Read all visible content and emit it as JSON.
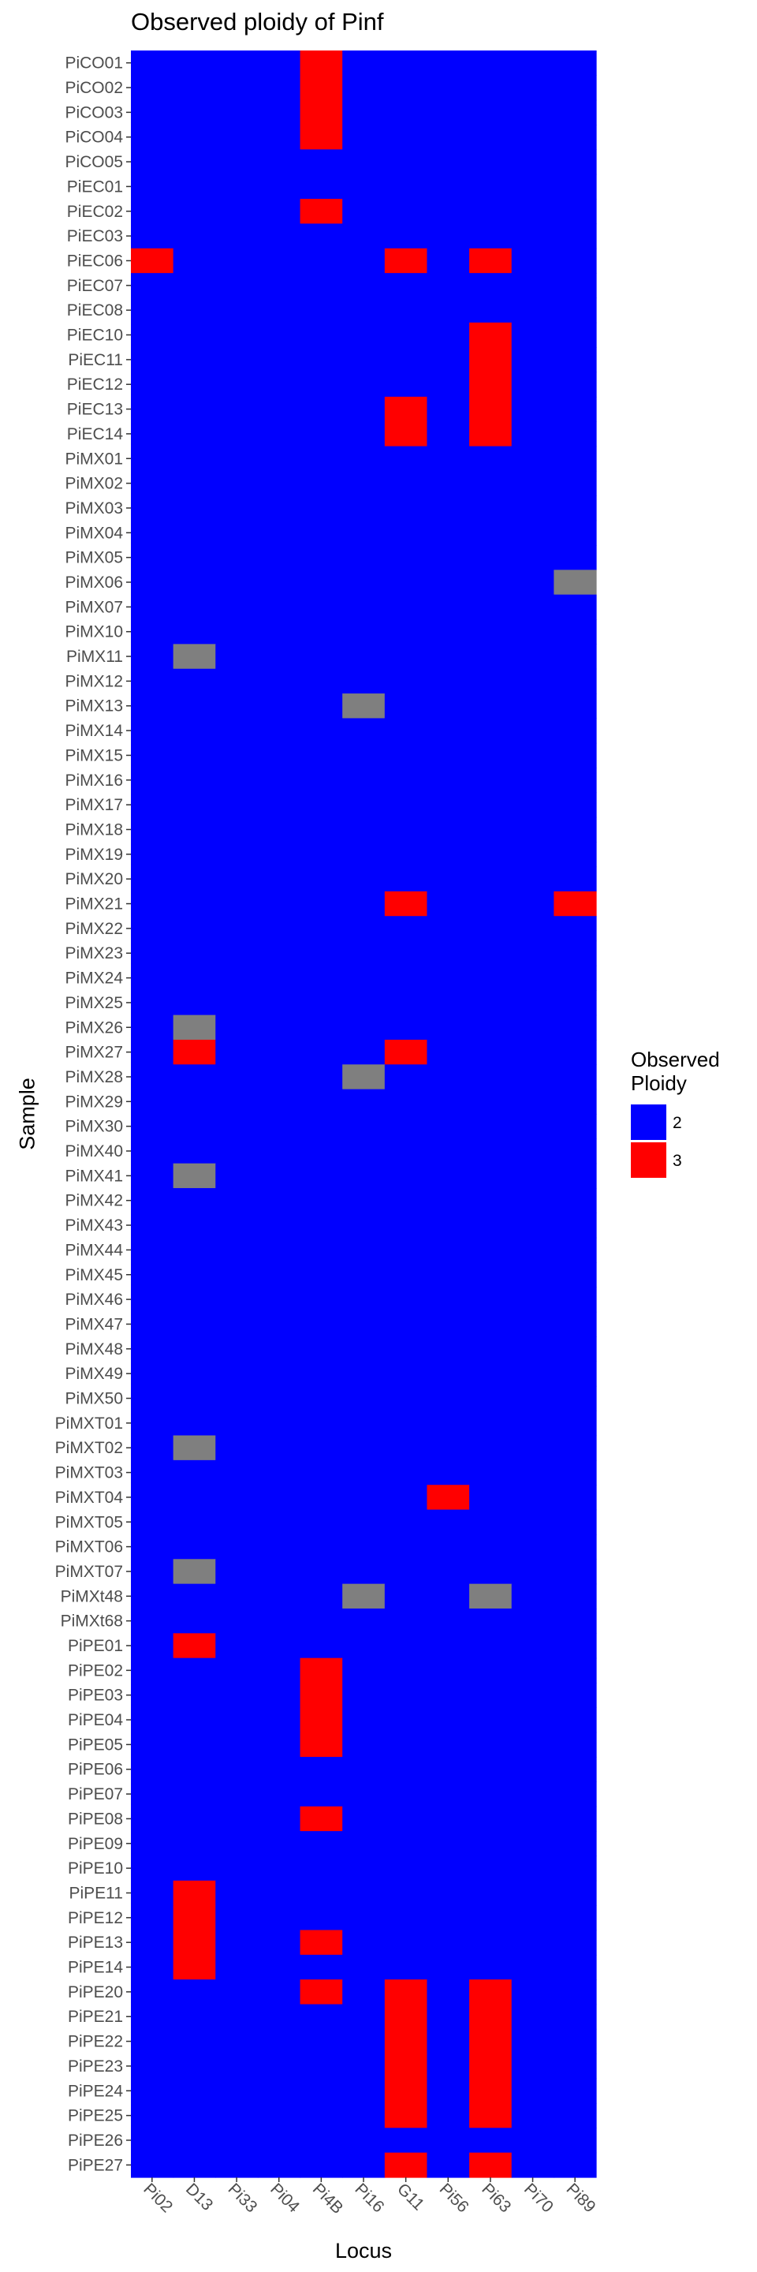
{
  "chart_data": {
    "type": "heatmap",
    "title": "Observed ploidy of Pinf",
    "xlabel": "Locus",
    "ylabel": "Sample",
    "x": [
      "Pi02",
      "D13",
      "Pi33",
      "Pi04",
      "Pi4B",
      "Pi16",
      "G11",
      "Pi56",
      "Pi63",
      "Pi70",
      "Pi89"
    ],
    "y": [
      "PiCO01",
      "PiCO02",
      "PiCO03",
      "PiCO04",
      "PiCO05",
      "PiEC01",
      "PiEC02",
      "PiEC03",
      "PiEC06",
      "PiEC07",
      "PiEC08",
      "PiEC10",
      "PiEC11",
      "PiEC12",
      "PiEC13",
      "PiEC14",
      "PiMX01",
      "PiMX02",
      "PiMX03",
      "PiMX04",
      "PiMX05",
      "PiMX06",
      "PiMX07",
      "PiMX10",
      "PiMX11",
      "PiMX12",
      "PiMX13",
      "PiMX14",
      "PiMX15",
      "PiMX16",
      "PiMX17",
      "PiMX18",
      "PiMX19",
      "PiMX20",
      "PiMX21",
      "PiMX22",
      "PiMX23",
      "PiMX24",
      "PiMX25",
      "PiMX26",
      "PiMX27",
      "PiMX28",
      "PiMX29",
      "PiMX30",
      "PiMX40",
      "PiMX41",
      "PiMX42",
      "PiMX43",
      "PiMX44",
      "PiMX45",
      "PiMX46",
      "PiMX47",
      "PiMX48",
      "PiMX49",
      "PiMX50",
      "PiMXT01",
      "PiMXT02",
      "PiMXT03",
      "PiMXT04",
      "PiMXT05",
      "PiMXT06",
      "PiMXT07",
      "PiMXt48",
      "PiMXt68",
      "PiPE01",
      "PiPE02",
      "PiPE03",
      "PiPE04",
      "PiPE05",
      "PiPE06",
      "PiPE07",
      "PiPE08",
      "PiPE09",
      "PiPE10",
      "PiPE11",
      "PiPE12",
      "PiPE13",
      "PiPE14",
      "PiPE20",
      "PiPE21",
      "PiPE22",
      "PiPE23",
      "PiPE24",
      "PiPE25",
      "PiPE26",
      "PiPE27"
    ],
    "default_value": "2",
    "cells": [
      {
        "y": "PiCO01",
        "x": "Pi4B",
        "value": "3"
      },
      {
        "y": "PiCO02",
        "x": "Pi4B",
        "value": "3"
      },
      {
        "y": "PiCO03",
        "x": "Pi4B",
        "value": "3"
      },
      {
        "y": "PiCO04",
        "x": "Pi4B",
        "value": "3"
      },
      {
        "y": "PiEC02",
        "x": "Pi4B",
        "value": "3"
      },
      {
        "y": "PiEC06",
        "x": "Pi02",
        "value": "3"
      },
      {
        "y": "PiEC06",
        "x": "G11",
        "value": "3"
      },
      {
        "y": "PiEC06",
        "x": "Pi63",
        "value": "3"
      },
      {
        "y": "PiEC10",
        "x": "Pi63",
        "value": "3"
      },
      {
        "y": "PiEC11",
        "x": "Pi63",
        "value": "3"
      },
      {
        "y": "PiEC12",
        "x": "Pi63",
        "value": "3"
      },
      {
        "y": "PiEC13",
        "x": "G11",
        "value": "3"
      },
      {
        "y": "PiEC13",
        "x": "Pi63",
        "value": "3"
      },
      {
        "y": "PiEC14",
        "x": "G11",
        "value": "3"
      },
      {
        "y": "PiEC14",
        "x": "Pi63",
        "value": "3"
      },
      {
        "y": "PiMX06",
        "x": "Pi89",
        "value": "NA"
      },
      {
        "y": "PiMX11",
        "x": "D13",
        "value": "NA"
      },
      {
        "y": "PiMX13",
        "x": "Pi16",
        "value": "NA"
      },
      {
        "y": "PiMX21",
        "x": "G11",
        "value": "3"
      },
      {
        "y": "PiMX21",
        "x": "Pi89",
        "value": "3"
      },
      {
        "y": "PiMX26",
        "x": "D13",
        "value": "NA"
      },
      {
        "y": "PiMX27",
        "x": "D13",
        "value": "3"
      },
      {
        "y": "PiMX27",
        "x": "G11",
        "value": "3"
      },
      {
        "y": "PiMX28",
        "x": "Pi16",
        "value": "NA"
      },
      {
        "y": "PiMX41",
        "x": "D13",
        "value": "NA"
      },
      {
        "y": "PiMXT02",
        "x": "D13",
        "value": "NA"
      },
      {
        "y": "PiMXT04",
        "x": "Pi56",
        "value": "3"
      },
      {
        "y": "PiMXT07",
        "x": "D13",
        "value": "NA"
      },
      {
        "y": "PiMXt48",
        "x": "Pi16",
        "value": "NA"
      },
      {
        "y": "PiMXt48",
        "x": "Pi63",
        "value": "NA"
      },
      {
        "y": "PiPE01",
        "x": "D13",
        "value": "3"
      },
      {
        "y": "PiPE02",
        "x": "Pi4B",
        "value": "3"
      },
      {
        "y": "PiPE03",
        "x": "Pi4B",
        "value": "3"
      },
      {
        "y": "PiPE04",
        "x": "Pi4B",
        "value": "3"
      },
      {
        "y": "PiPE05",
        "x": "Pi4B",
        "value": "3"
      },
      {
        "y": "PiPE08",
        "x": "Pi4B",
        "value": "3"
      },
      {
        "y": "PiPE11",
        "x": "D13",
        "value": "3"
      },
      {
        "y": "PiPE12",
        "x": "D13",
        "value": "3"
      },
      {
        "y": "PiPE13",
        "x": "D13",
        "value": "3"
      },
      {
        "y": "PiPE13",
        "x": "Pi4B",
        "value": "3"
      },
      {
        "y": "PiPE14",
        "x": "D13",
        "value": "3"
      },
      {
        "y": "PiPE20",
        "x": "Pi4B",
        "value": "3"
      },
      {
        "y": "PiPE20",
        "x": "G11",
        "value": "3"
      },
      {
        "y": "PiPE20",
        "x": "Pi63",
        "value": "3"
      },
      {
        "y": "PiPE21",
        "x": "G11",
        "value": "3"
      },
      {
        "y": "PiPE21",
        "x": "Pi63",
        "value": "3"
      },
      {
        "y": "PiPE22",
        "x": "G11",
        "value": "3"
      },
      {
        "y": "PiPE22",
        "x": "Pi63",
        "value": "3"
      },
      {
        "y": "PiPE23",
        "x": "G11",
        "value": "3"
      },
      {
        "y": "PiPE23",
        "x": "Pi63",
        "value": "3"
      },
      {
        "y": "PiPE24",
        "x": "G11",
        "value": "3"
      },
      {
        "y": "PiPE24",
        "x": "Pi63",
        "value": "3"
      },
      {
        "y": "PiPE25",
        "x": "G11",
        "value": "3"
      },
      {
        "y": "PiPE25",
        "x": "Pi63",
        "value": "3"
      },
      {
        "y": "PiPE27",
        "x": "G11",
        "value": "3"
      },
      {
        "y": "PiPE27",
        "x": "Pi63",
        "value": "3"
      }
    ],
    "colors": {
      "2": "#0000ff",
      "3": "#ff0000",
      "NA": "#7f7f7f"
    },
    "legend": {
      "title_lines": [
        "Observed",
        "Ploidy"
      ],
      "entries": [
        {
          "label": "2",
          "color": "#0000ff"
        },
        {
          "label": "3",
          "color": "#ff0000"
        }
      ],
      "placement": "right"
    },
    "grid": false
  }
}
